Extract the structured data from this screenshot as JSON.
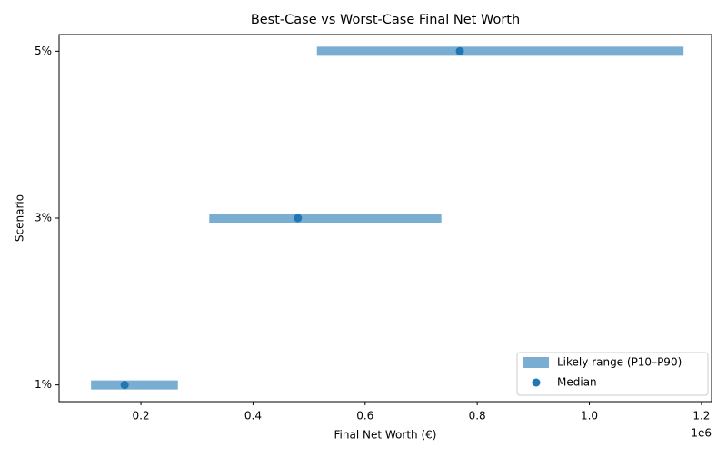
{
  "chart_data": {
    "type": "range",
    "title": "Best-Case vs Worst-Case Final Net Worth",
    "x_label": "Final Net Worth (€)",
    "y_label": "Scenario",
    "x_offset_label": "1e6",
    "categories": [
      "1%",
      "3%",
      "5%"
    ],
    "series": [
      {
        "name": "Likely range (P10–P90)",
        "color": "#1f77b4",
        "low": [
          111000,
          322000,
          514000
        ],
        "high": [
          266000,
          736000,
          1168000
        ]
      },
      {
        "name": "Median",
        "color": "#1f77b4",
        "values": [
          171000,
          480000,
          769000
        ]
      }
    ],
    "xlim": [
      54000,
      1218000
    ],
    "xticks": [
      {
        "value": 200000,
        "label": "0.2"
      },
      {
        "value": 400000,
        "label": "0.4"
      },
      {
        "value": 600000,
        "label": "0.6"
      },
      {
        "value": 800000,
        "label": "0.8"
      },
      {
        "value": 1000000,
        "label": "1.0"
      },
      {
        "value": 1200000,
        "label": "1.2"
      }
    ],
    "legend": "lower right"
  }
}
